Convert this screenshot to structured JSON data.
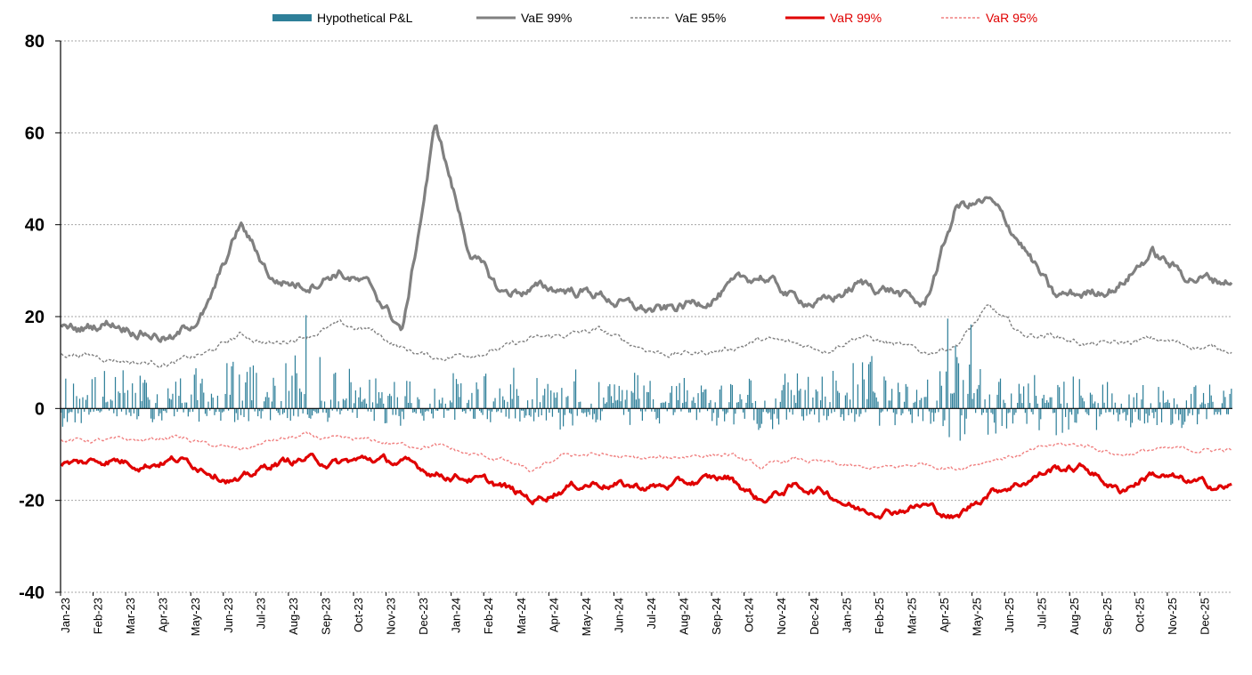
{
  "chart_data": {
    "type": "line",
    "title": "",
    "xlabel": "",
    "ylabel": "",
    "ylim": [
      -40,
      80
    ],
    "yticks": [
      -40,
      -20,
      0,
      20,
      40,
      60,
      80
    ],
    "ytick_labels": [
      "-40",
      "-20",
      "0",
      "20",
      "40",
      "60",
      "80"
    ],
    "grid": "horizontal dotted",
    "legend_position": "top",
    "x_start": "Jan-23",
    "x_end": "Dec-25",
    "categories": [
      "Jan-23",
      "Feb-23",
      "Mar-23",
      "Apr-23",
      "May-23",
      "Jun-23",
      "Jul-23",
      "Aug-23",
      "Sep-23",
      "Oct-23",
      "Nov-23",
      "Dec-23",
      "Jan-24",
      "Feb-24",
      "Mar-24",
      "Apr-24",
      "May-24",
      "Jun-24",
      "Jul-24",
      "Aug-24",
      "Sep-24",
      "Oct-24",
      "Nov-24",
      "Dec-24",
      "Jan-25",
      "Feb-25",
      "Mar-25",
      "Apr-25",
      "May-25",
      "Jun-25",
      "Jul-25",
      "Aug-25",
      "Sep-25",
      "Oct-25",
      "Nov-25",
      "Dec-25"
    ],
    "series": [
      {
        "name": "Hypothetical P&L",
        "style": "bar",
        "color": "#2e7f99",
        "note": "daily values; approximate band of positive and negative daily bars per month",
        "values_max": [
          8,
          9,
          8,
          8,
          9,
          11,
          10,
          21,
          10,
          7,
          8,
          7,
          8,
          9,
          8,
          9,
          7,
          9,
          8,
          8,
          8,
          8,
          8,
          9,
          13,
          9,
          8,
          21,
          10,
          8,
          7,
          7,
          7,
          6,
          6,
          6
        ],
        "values_min": [
          -4,
          -3,
          -3,
          -3,
          -3,
          -3,
          -3,
          -3,
          -3,
          -4,
          -4,
          -3,
          -3,
          -3,
          -3,
          -6,
          -4,
          -4,
          -4,
          -3,
          -4,
          -5,
          -5,
          -4,
          -4,
          -4,
          -4,
          -10,
          -6,
          -5,
          -6,
          -5,
          -5,
          -5,
          -5,
          -5
        ]
      },
      {
        "name": "VaE 99%",
        "style": "solid",
        "color": "#808080",
        "values": [
          17,
          19,
          17,
          15,
          22,
          40,
          28,
          27,
          30,
          26,
          17,
          62,
          35,
          25,
          26,
          26,
          25,
          22,
          21,
          23,
          26,
          29,
          24,
          23,
          27,
          26,
          22,
          44,
          45,
          36,
          24,
          25,
          27,
          34,
          29,
          28
        ]
      },
      {
        "name": "VaE 95%",
        "style": "dashed",
        "color": "#808080",
        "values": [
          12,
          11,
          10,
          10,
          12,
          16,
          14,
          16,
          18,
          17,
          13,
          11,
          12,
          13,
          15,
          16,
          17,
          14,
          12,
          12,
          13,
          15,
          14,
          13,
          16,
          14,
          12,
          14,
          22,
          16,
          16,
          14,
          14,
          15,
          14,
          13
        ]
      },
      {
        "name": "VaR 99%",
        "style": "solid",
        "color": "#e00000",
        "values": [
          -12,
          -11,
          -12,
          -11,
          -13,
          -16,
          -12,
          -11,
          -12,
          -11,
          -12,
          -14,
          -15,
          -17,
          -20,
          -17,
          -16,
          -17,
          -17,
          -16,
          -15,
          -20,
          -17,
          -18,
          -22,
          -22,
          -21,
          -24,
          -18,
          -16,
          -13,
          -13,
          -18,
          -14,
          -16,
          -17
        ]
      },
      {
        "name": "VaR 95%",
        "style": "dashed",
        "color": "#f08080",
        "values": [
          -7,
          -7,
          -7,
          -6,
          -8,
          -9,
          -7,
          -6,
          -7,
          -7,
          -8,
          -8,
          -10,
          -11,
          -14,
          -10,
          -10,
          -11,
          -11,
          -10,
          -10,
          -13,
          -11,
          -12,
          -13,
          -13,
          -12,
          -13,
          -11,
          -10,
          -8,
          -8,
          -10,
          -9,
          -9,
          -9
        ]
      }
    ]
  }
}
